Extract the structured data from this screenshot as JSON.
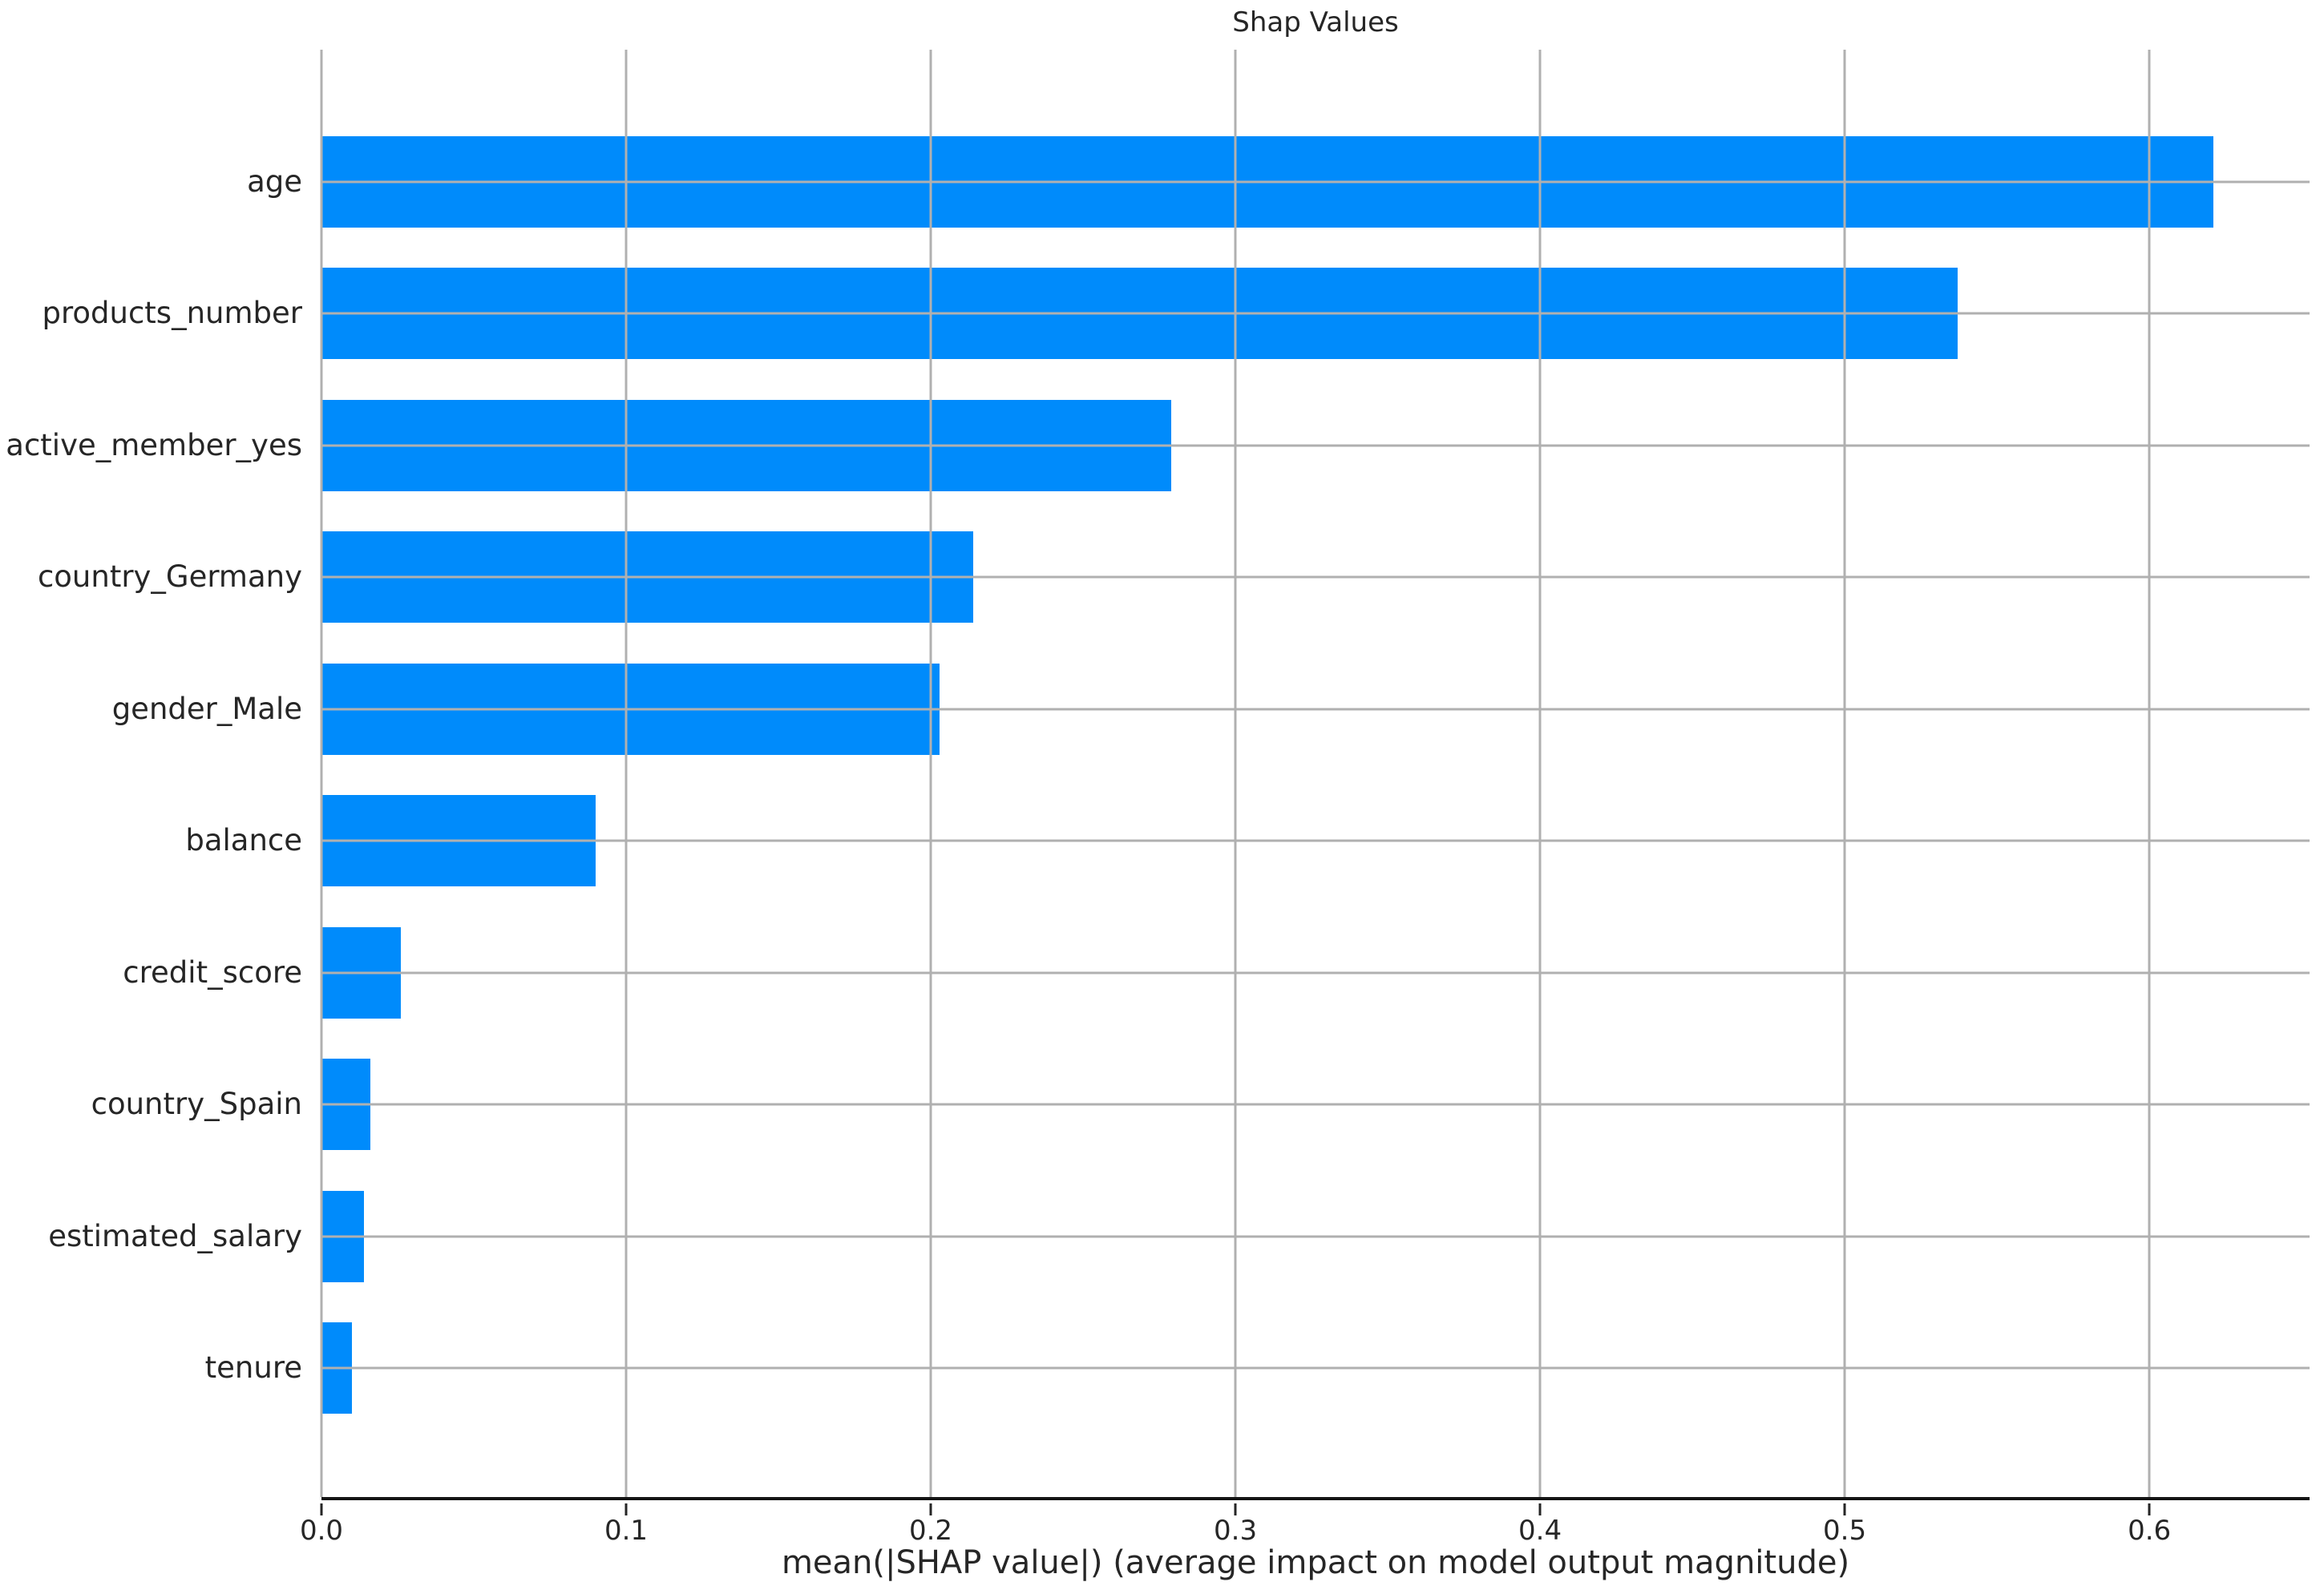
{
  "title": "Shap Values",
  "x_axis_label": "mean(|SHAP value|) (average impact on model output magnitude)",
  "colors": {
    "bar": "#008bfb",
    "grid": "#b0b0b0",
    "axis": "#141414",
    "text": "#262626"
  },
  "chart_data": {
    "type": "bar",
    "orientation": "horizontal",
    "title": "Shap Values",
    "xlabel": "mean(|SHAP value|) (average impact on model output magnitude)",
    "ylabel": "",
    "categories": [
      "age",
      "products_number",
      "active_member_yes",
      "country_Germany",
      "gender_Male",
      "balance",
      "credit_score",
      "country_Spain",
      "estimated_salary",
      "tenure"
    ],
    "values": [
      0.621,
      0.537,
      0.279,
      0.214,
      0.203,
      0.09,
      0.026,
      0.016,
      0.014,
      0.01
    ],
    "xlim": [
      0,
      0.6526
    ],
    "xticks": [
      0.0,
      0.1,
      0.2,
      0.3,
      0.4,
      0.5,
      0.6
    ],
    "xtick_labels": [
      "0.0",
      "0.1",
      "0.2",
      "0.3",
      "0.4",
      "0.5",
      "0.6"
    ],
    "grid": true,
    "grid_over_bars": true,
    "legend": "none",
    "bar_color": "#008bfb",
    "grid_color": "#b0b0b0"
  }
}
